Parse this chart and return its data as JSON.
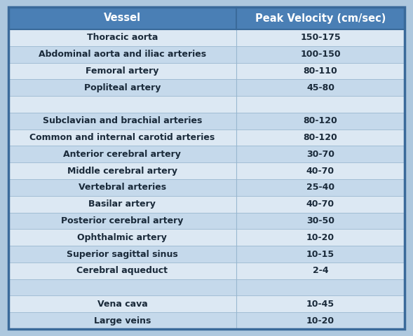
{
  "header": [
    "Vessel",
    "Peak Velocity (cm/sec)"
  ],
  "rows": [
    [
      "Thoracic aorta",
      "150-175"
    ],
    [
      "Abdominal aorta and iliac arteries",
      "100-150"
    ],
    [
      "Femoral artery",
      "80-110"
    ],
    [
      "Popliteal artery",
      "45-80"
    ],
    [
      "",
      ""
    ],
    [
      "Subclavian and brachial arteries",
      "80-120"
    ],
    [
      "Common and internal carotid arteries",
      "80-120"
    ],
    [
      "Anterior cerebral artery",
      "30-70"
    ],
    [
      "Middle cerebral artery",
      "40-70"
    ],
    [
      "Vertebral arteries",
      "25-40"
    ],
    [
      "Basilar artery",
      "40-70"
    ],
    [
      "Posterior cerebral artery",
      "30-50"
    ],
    [
      "Ophthalmic artery",
      "10-20"
    ],
    [
      "Superior sagittal sinus",
      "10-15"
    ],
    [
      "Cerebral aqueduct",
      "2-4"
    ],
    [
      "",
      ""
    ],
    [
      "Vena cava",
      "10-45"
    ],
    [
      "Large veins",
      "10-20"
    ]
  ],
  "header_bg": "#4a7fb5",
  "header_text_color": "#ffffff",
  "row_color_light": "#dce8f3",
  "row_color_dark": "#c5d9eb",
  "separator_color": "#9ab8d0",
  "border_color": "#3a6a9a",
  "text_color": "#1a2a3a",
  "font_size": 9.0,
  "header_font_size": 10.5,
  "fig_bg": "#aec8de",
  "col_split": 0.575
}
